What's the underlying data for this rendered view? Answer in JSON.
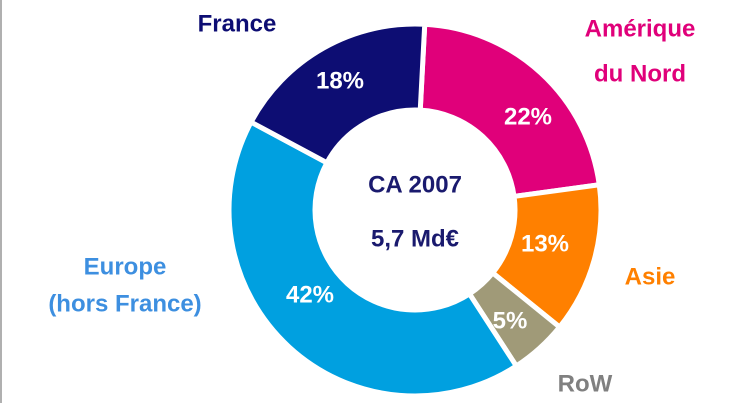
{
  "chart_data": {
    "type": "donut",
    "center_text": [
      "CA 2007",
      "5,7 Md€"
    ],
    "categories": [
      [
        "Amérique",
        "du Nord"
      ],
      [
        "Asie"
      ],
      [
        "RoW"
      ],
      [
        "Europe",
        "(hors France)"
      ],
      [
        "France"
      ]
    ],
    "values": [
      22,
      13,
      5,
      42,
      18
    ],
    "value_labels": [
      "22%",
      "13%",
      "5%",
      "42%",
      "18%"
    ],
    "colors": [
      "#e0007a",
      "#ff8000",
      "#a09a78",
      "#00a0e0",
      "#0d0d73"
    ],
    "label_colors": [
      "#e0007a",
      "#ff8000",
      "#808080",
      "#3d8fe0",
      "#0d0d73"
    ]
  }
}
